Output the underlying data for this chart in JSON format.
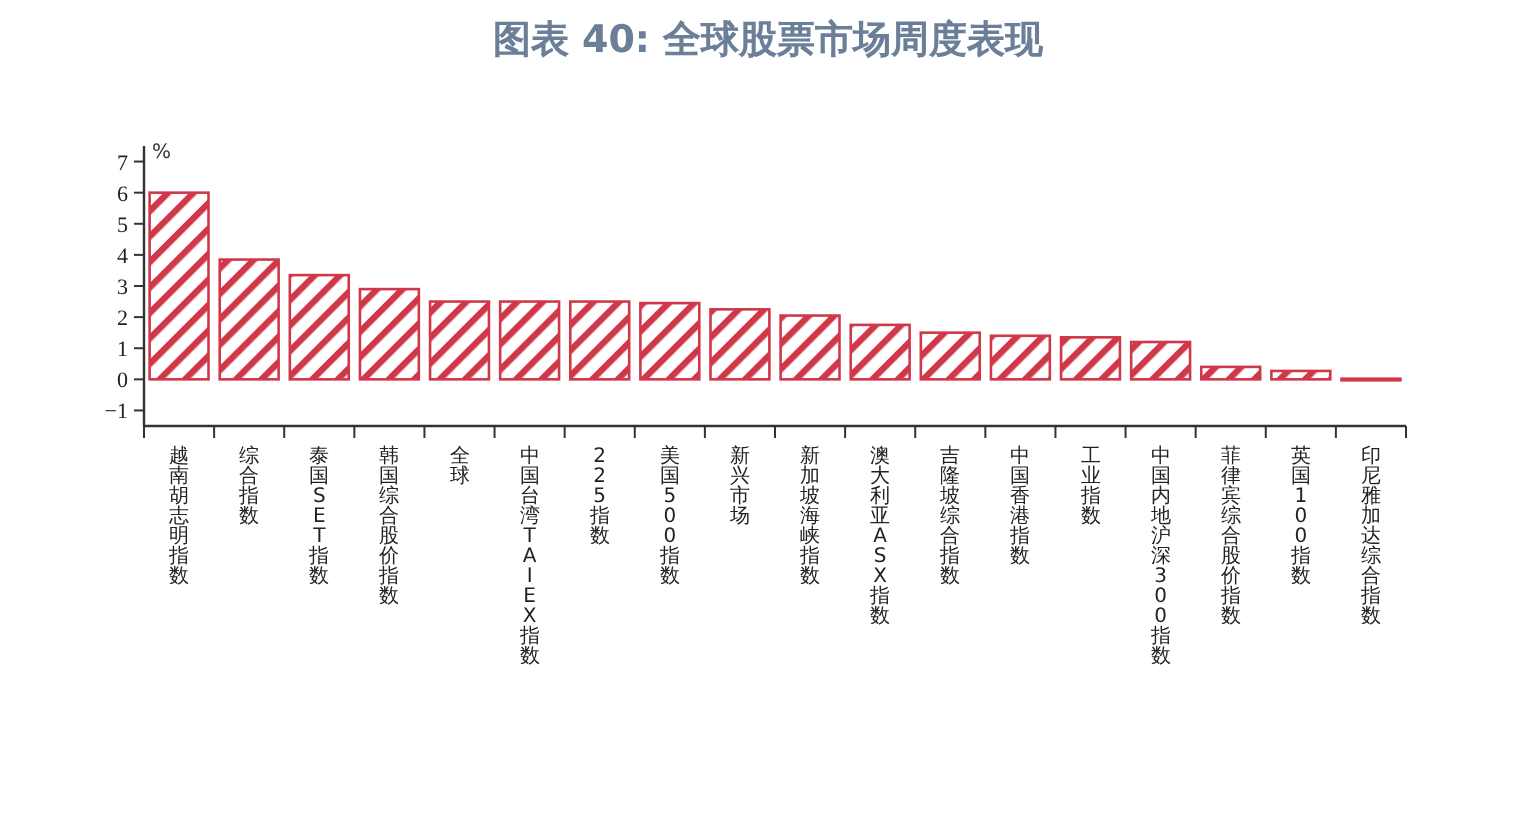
{
  "chart_data": {
    "type": "bar",
    "title": "图表 40: 全球股票市场周度表现",
    "ylabel": "%",
    "categories": [
      "越南胡志明指数",
      "综合指数",
      "泰国SET指数",
      "韩国综合股价指数",
      "全球",
      "中国台湾TAIEX指数",
      "225指数",
      "美国500指数",
      "新兴市场",
      "新加坡海峡指数",
      "澳大利亚ASX指数",
      "吉隆坡综合指数",
      "中国香港指数",
      "工业指数",
      "中国内地沪深300指数",
      "菲律宾综合股价指数",
      "英国100指数",
      "印尼雅加达综合指数"
    ],
    "values": [
      6.0,
      3.85,
      3.35,
      2.9,
      2.5,
      2.5,
      2.5,
      2.45,
      2.25,
      2.05,
      1.75,
      1.5,
      1.4,
      1.35,
      1.2,
      0.4,
      0.27,
      0.02
    ],
    "color": "#d0384a",
    "ylim": [
      -1.5,
      7.5
    ],
    "yticks": [
      -1,
      0,
      1,
      2,
      3,
      4,
      5,
      6,
      7
    ],
    "grid": false
  }
}
